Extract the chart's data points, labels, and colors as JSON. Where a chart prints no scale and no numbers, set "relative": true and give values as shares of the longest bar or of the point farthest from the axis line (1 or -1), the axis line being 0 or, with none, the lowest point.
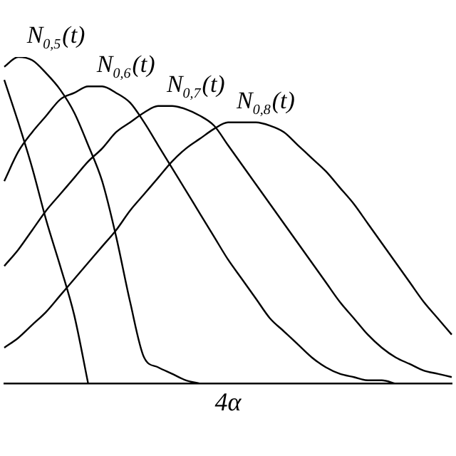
{
  "chart_data": {
    "type": "line",
    "relative": true,
    "grid": false,
    "legend": false,
    "marker": "none",
    "line_style": "solid",
    "categories": [
      null,
      null,
      null,
      null,
      null,
      null,
      null,
      null,
      null,
      null,
      null,
      null,
      null,
      null,
      null,
      null,
      null,
      null,
      null,
      null,
      null,
      null,
      null,
      null,
      null,
      null,
      null,
      null,
      null,
      null,
      null,
      null,
      null
    ],
    "annotations": [
      "4α"
    ],
    "series": [
      {
        "color": "#000000",
        "values": [
          0.93,
          0.8,
          0.66,
          0.5,
          0.36,
          0.21,
          0,
          null,
          null,
          null,
          null,
          null,
          null,
          null,
          null,
          null,
          null,
          null,
          null,
          null,
          null,
          null,
          null,
          null,
          null,
          null,
          null,
          null,
          null,
          null,
          null,
          null,
          null
        ]
      },
      {
        "name": "N$_{0,5}$(t)",
        "color": "#000000",
        "values": [
          0.97,
          1.0,
          0.99,
          0.95,
          0.9,
          0.83,
          0.73,
          0.62,
          0.45,
          0.25,
          0.08,
          0.05,
          0.03,
          0.01,
          0,
          null,
          null,
          null,
          null,
          null,
          null,
          null,
          null,
          null,
          null,
          null,
          null,
          null,
          null,
          null,
          null,
          null,
          null
        ]
      },
      {
        "name": "N$_{0,6}$(t)",
        "color": "#000000",
        "values": [
          0.62,
          0.71,
          0.77,
          0.82,
          0.87,
          0.89,
          0.91,
          0.91,
          0.89,
          0.86,
          0.8,
          0.73,
          0.66,
          0.59,
          0.52,
          0.45,
          0.38,
          0.32,
          0.26,
          0.2,
          0.16,
          0.12,
          0.08,
          0.05,
          0.03,
          0.02,
          0.01,
          0.01,
          0,
          null,
          null,
          null,
          null
        ]
      },
      {
        "name": "N$_{0,7}$(t)",
        "color": "#000000",
        "values": [
          0.36,
          0.41,
          0.47,
          0.53,
          0.58,
          0.63,
          0.68,
          0.72,
          0.77,
          0.8,
          0.83,
          0.85,
          0.85,
          0.84,
          0.82,
          0.79,
          0.73,
          0.67,
          0.61,
          0.55,
          0.49,
          0.43,
          0.37,
          0.31,
          0.25,
          0.2,
          0.15,
          0.11,
          0.08,
          0.06,
          0.04,
          0.03,
          0.02
        ]
      },
      {
        "name": "N$_{0,8}$(t)",
        "color": "#000000",
        "values": [
          0.11,
          0.14,
          0.18,
          0.22,
          0.27,
          0.32,
          0.37,
          0.42,
          0.47,
          0.53,
          0.58,
          0.63,
          0.68,
          0.72,
          0.75,
          0.78,
          0.8,
          0.8,
          0.8,
          0.79,
          0.77,
          0.73,
          0.69,
          0.65,
          0.6,
          0.55,
          0.49,
          0.43,
          0.37,
          0.31,
          0.25,
          0.2,
          0.15
        ]
      }
    ]
  }
}
